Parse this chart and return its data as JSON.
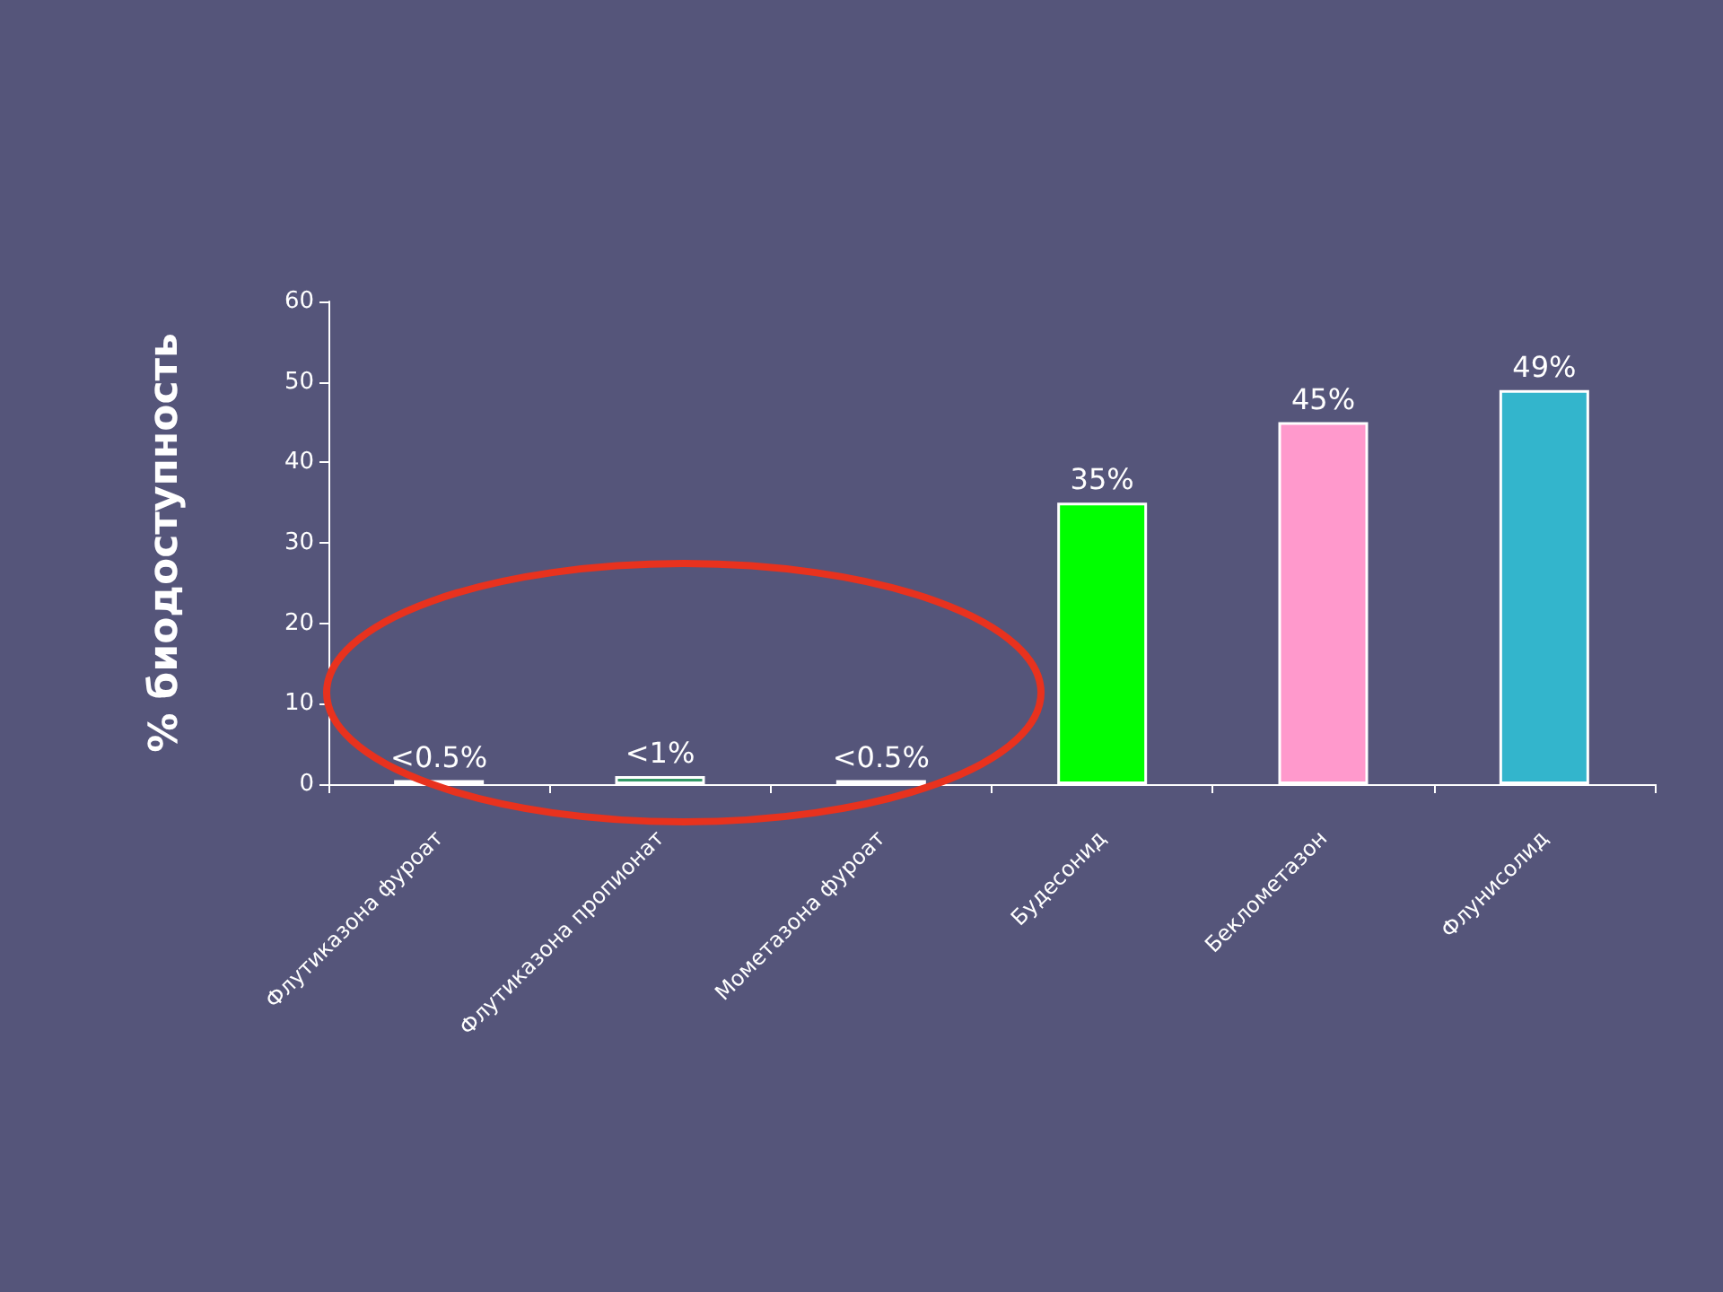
{
  "chart_data": {
    "type": "bar",
    "ylabel": "% биодоступность",
    "categories": [
      "Флутиказона фуроат",
      "Флутиказона пропионат",
      "Мометазона фуроат",
      "Будесонид",
      "Беклометазон",
      "Флунисолид"
    ],
    "values": [
      0.5,
      1,
      0.5,
      35,
      45,
      49
    ],
    "colors": [
      "#cc99ff",
      "#339966",
      "#cc99ff",
      "#00ff00",
      "#ff99cc",
      "#33b5cc"
    ],
    "value_labels": [
      "<0.5%",
      "<1%",
      "<0.5%",
      "35%",
      "45%",
      "49%"
    ],
    "ylim": [
      0,
      60
    ],
    "yticks": [
      0,
      10,
      20,
      30,
      40,
      50,
      60
    ],
    "grid": false
  }
}
